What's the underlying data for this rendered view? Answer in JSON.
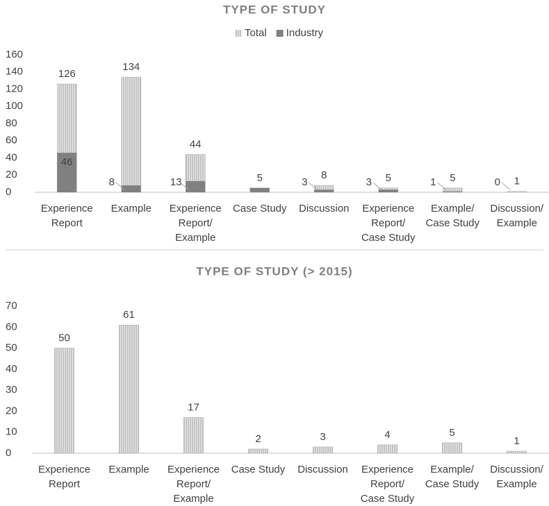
{
  "chart_data": [
    {
      "type": "bar",
      "title": "TYPE OF STUDY",
      "categories": [
        "Experience Report",
        "Example",
        "Experience Report/ Example",
        "Case Study",
        "Discussion",
        "Experience Report/ Case Study",
        "Example/ Case Study",
        "Discussion/ Example"
      ],
      "series": [
        {
          "name": "Total",
          "color": "#d9d9d9",
          "values": [
            126,
            134,
            44,
            5,
            8,
            5,
            5,
            1
          ]
        },
        {
          "name": "Industry",
          "color": "#808080",
          "values": [
            46,
            8,
            13,
            5,
            3,
            3,
            1,
            0
          ],
          "value_labels": [
            "46",
            "8",
            "13",
            null,
            "3",
            "3",
            "1",
            "0"
          ]
        }
      ],
      "ylim": [
        0,
        160
      ],
      "yticks": [
        0,
        20,
        40,
        60,
        80,
        100,
        120,
        140,
        160
      ],
      "legend": "top"
    },
    {
      "type": "bar",
      "title": "TYPE OF STUDY (> 2015)",
      "categories": [
        "Experience Report",
        "Example",
        "Experience Report/ Example",
        "Case Study",
        "Discussion",
        "Experience Report/ Case Study",
        "Example/ Case Study",
        "Discussion/ Example"
      ],
      "values": [
        50,
        61,
        17,
        2,
        3,
        4,
        5,
        1
      ],
      "color": "#d9d9d9",
      "ylim": [
        0,
        70
      ],
      "yticks": [
        0,
        10,
        20,
        30,
        40,
        50,
        60,
        70
      ]
    }
  ]
}
